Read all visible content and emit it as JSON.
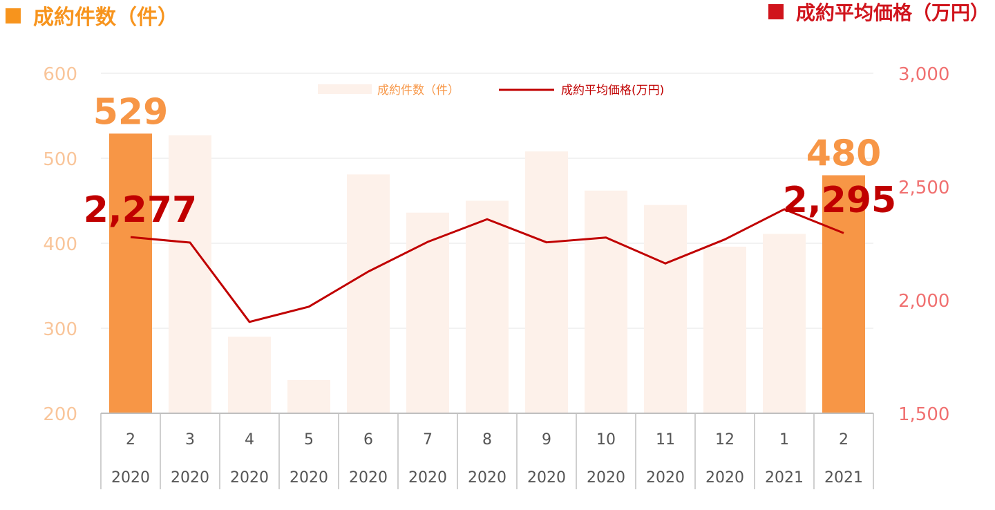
{
  "header": {
    "left_title": "成約件数（件）",
    "right_title": "成約平均価格（万円）"
  },
  "colors": {
    "bar_highlight": "#F79646",
    "bar_light": "#FDF1EA",
    "line": "#C00000",
    "left_axis_text": "#F9C59A",
    "right_axis_text": "#F07070",
    "left_header": "#F7941D",
    "right_header": "#D0141C",
    "left_label": "#F79646",
    "right_label": "#C00000",
    "grid": "#E6E6E6"
  },
  "chart_data": {
    "type": "bar",
    "categories": [
      {
        "month": "2",
        "year": "2020"
      },
      {
        "month": "3",
        "year": "2020"
      },
      {
        "month": "4",
        "year": "2020"
      },
      {
        "month": "5",
        "year": "2020"
      },
      {
        "month": "6",
        "year": "2020"
      },
      {
        "month": "7",
        "year": "2020"
      },
      {
        "month": "8",
        "year": "2020"
      },
      {
        "month": "9",
        "year": "2020"
      },
      {
        "month": "10",
        "year": "2020"
      },
      {
        "month": "11",
        "year": "2020"
      },
      {
        "month": "12",
        "year": "2020"
      },
      {
        "month": "1",
        "year": "2021"
      },
      {
        "month": "2",
        "year": "2021"
      }
    ],
    "series": [
      {
        "name": "成約件数（件）",
        "type": "bar",
        "axis": "left",
        "values": [
          529,
          527,
          290,
          239,
          481,
          436,
          450,
          508,
          462,
          445,
          396,
          411,
          480
        ],
        "highlight": [
          true,
          false,
          false,
          false,
          false,
          false,
          false,
          false,
          false,
          false,
          false,
          false,
          true
        ]
      },
      {
        "name": "成約平均価格(万円)",
        "type": "line",
        "axis": "right",
        "values": [
          2277,
          2253,
          1903,
          1970,
          2125,
          2256,
          2356,
          2254,
          2275,
          2161,
          2267,
          2400,
          2295
        ]
      }
    ],
    "y_left": {
      "min": 200,
      "max": 600,
      "ticks": [
        "200",
        "300",
        "400",
        "500",
        "600"
      ]
    },
    "y_right": {
      "min": 1500,
      "max": 3000,
      "ticks": [
        "1,500",
        "2,000",
        "2,500",
        "3,000"
      ]
    },
    "data_labels": {
      "bar_first": "529",
      "bar_last": "480",
      "line_first": "2,277",
      "line_last": "2,295"
    },
    "grid": true,
    "legend_position": "top-center"
  }
}
